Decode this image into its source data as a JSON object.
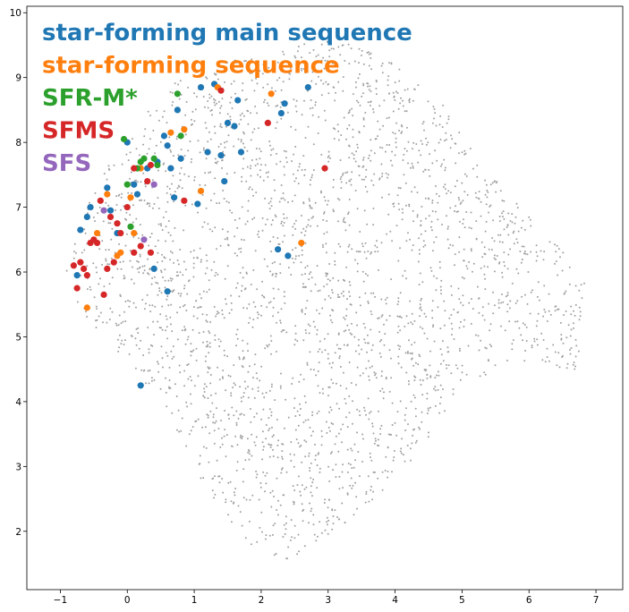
{
  "chart_data": {
    "type": "scatter",
    "title": "",
    "xlabel": "",
    "ylabel": "",
    "xlim": [
      -1.5,
      7.4
    ],
    "ylim": [
      1.1,
      10.1
    ],
    "xticks": [
      "−1",
      "0",
      "1",
      "2",
      "3",
      "4",
      "5",
      "6",
      "7"
    ],
    "yticks": [
      "2",
      "3",
      "4",
      "5",
      "6",
      "7",
      "8",
      "9",
      "10"
    ],
    "grid": false,
    "legend_position": "top-left",
    "background_cloud_color": "#808080",
    "series": [
      {
        "name": "star-forming main sequence",
        "color": "#1f77b4",
        "points": [
          [
            -0.7,
            6.65
          ],
          [
            -0.55,
            7.0
          ],
          [
            -0.3,
            7.3
          ],
          [
            -0.25,
            6.95
          ],
          [
            -0.15,
            6.6
          ],
          [
            0.0,
            8.0
          ],
          [
            0.15,
            7.2
          ],
          [
            0.3,
            7.6
          ],
          [
            0.45,
            7.7
          ],
          [
            0.55,
            8.1
          ],
          [
            0.6,
            7.95
          ],
          [
            0.65,
            7.6
          ],
          [
            0.7,
            7.15
          ],
          [
            0.75,
            8.5
          ],
          [
            0.8,
            7.75
          ],
          [
            1.1,
            8.85
          ],
          [
            1.2,
            7.85
          ],
          [
            1.3,
            8.9
          ],
          [
            1.4,
            7.8
          ],
          [
            1.45,
            7.4
          ],
          [
            1.5,
            8.3
          ],
          [
            1.6,
            8.25
          ],
          [
            1.65,
            8.65
          ],
          [
            1.7,
            7.85
          ],
          [
            2.25,
            6.35
          ],
          [
            2.3,
            8.45
          ],
          [
            2.35,
            8.6
          ],
          [
            2.4,
            6.25
          ],
          [
            2.7,
            8.85
          ],
          [
            0.4,
            6.05
          ],
          [
            0.6,
            5.7
          ],
          [
            0.2,
            4.25
          ],
          [
            -0.75,
            5.95
          ],
          [
            -0.6,
            6.85
          ],
          [
            0.1,
            7.35
          ],
          [
            1.05,
            7.05
          ]
        ]
      },
      {
        "name": "star-forming sequence",
        "color": "#ff7f0e",
        "points": [
          [
            -0.6,
            5.45
          ],
          [
            -0.45,
            6.6
          ],
          [
            -0.3,
            7.2
          ],
          [
            -0.1,
            6.3
          ],
          [
            0.05,
            7.15
          ],
          [
            0.2,
            7.6
          ],
          [
            0.65,
            8.15
          ],
          [
            0.85,
            8.2
          ],
          [
            1.1,
            7.25
          ],
          [
            1.35,
            8.85
          ],
          [
            2.15,
            8.75
          ],
          [
            2.6,
            6.45
          ],
          [
            -0.15,
            6.25
          ],
          [
            0.1,
            6.6
          ]
        ]
      },
      {
        "name": "SFR-M*",
        "color": "#2ca02c",
        "points": [
          [
            -0.05,
            8.05
          ],
          [
            0.0,
            7.35
          ],
          [
            0.05,
            6.7
          ],
          [
            0.15,
            7.6
          ],
          [
            0.2,
            7.7
          ],
          [
            0.25,
            7.75
          ],
          [
            0.4,
            7.75
          ],
          [
            0.45,
            7.65
          ],
          [
            0.75,
            8.75
          ],
          [
            0.8,
            8.1
          ]
        ]
      },
      {
        "name": "SFMS",
        "color": "#d62728",
        "points": [
          [
            -0.8,
            6.1
          ],
          [
            -0.75,
            5.75
          ],
          [
            -0.7,
            6.15
          ],
          [
            -0.65,
            6.05
          ],
          [
            -0.6,
            5.95
          ],
          [
            -0.5,
            6.5
          ],
          [
            -0.45,
            6.45
          ],
          [
            -0.4,
            7.1
          ],
          [
            -0.35,
            5.65
          ],
          [
            -0.3,
            6.05
          ],
          [
            -0.25,
            6.85
          ],
          [
            -0.2,
            6.15
          ],
          [
            -0.15,
            6.75
          ],
          [
            -0.1,
            6.6
          ],
          [
            0.0,
            7.0
          ],
          [
            0.1,
            7.6
          ],
          [
            0.1,
            6.3
          ],
          [
            0.2,
            6.4
          ],
          [
            0.3,
            7.4
          ],
          [
            0.35,
            6.3
          ],
          [
            0.35,
            7.65
          ],
          [
            0.85,
            7.1
          ],
          [
            1.4,
            8.8
          ],
          [
            2.1,
            8.3
          ],
          [
            2.95,
            7.6
          ],
          [
            -0.55,
            6.45
          ]
        ]
      },
      {
        "name": "SFS",
        "color": "#9467bd",
        "points": [
          [
            0.4,
            7.35
          ],
          [
            0.25,
            6.5
          ],
          [
            -0.35,
            6.95
          ]
        ]
      }
    ]
  }
}
